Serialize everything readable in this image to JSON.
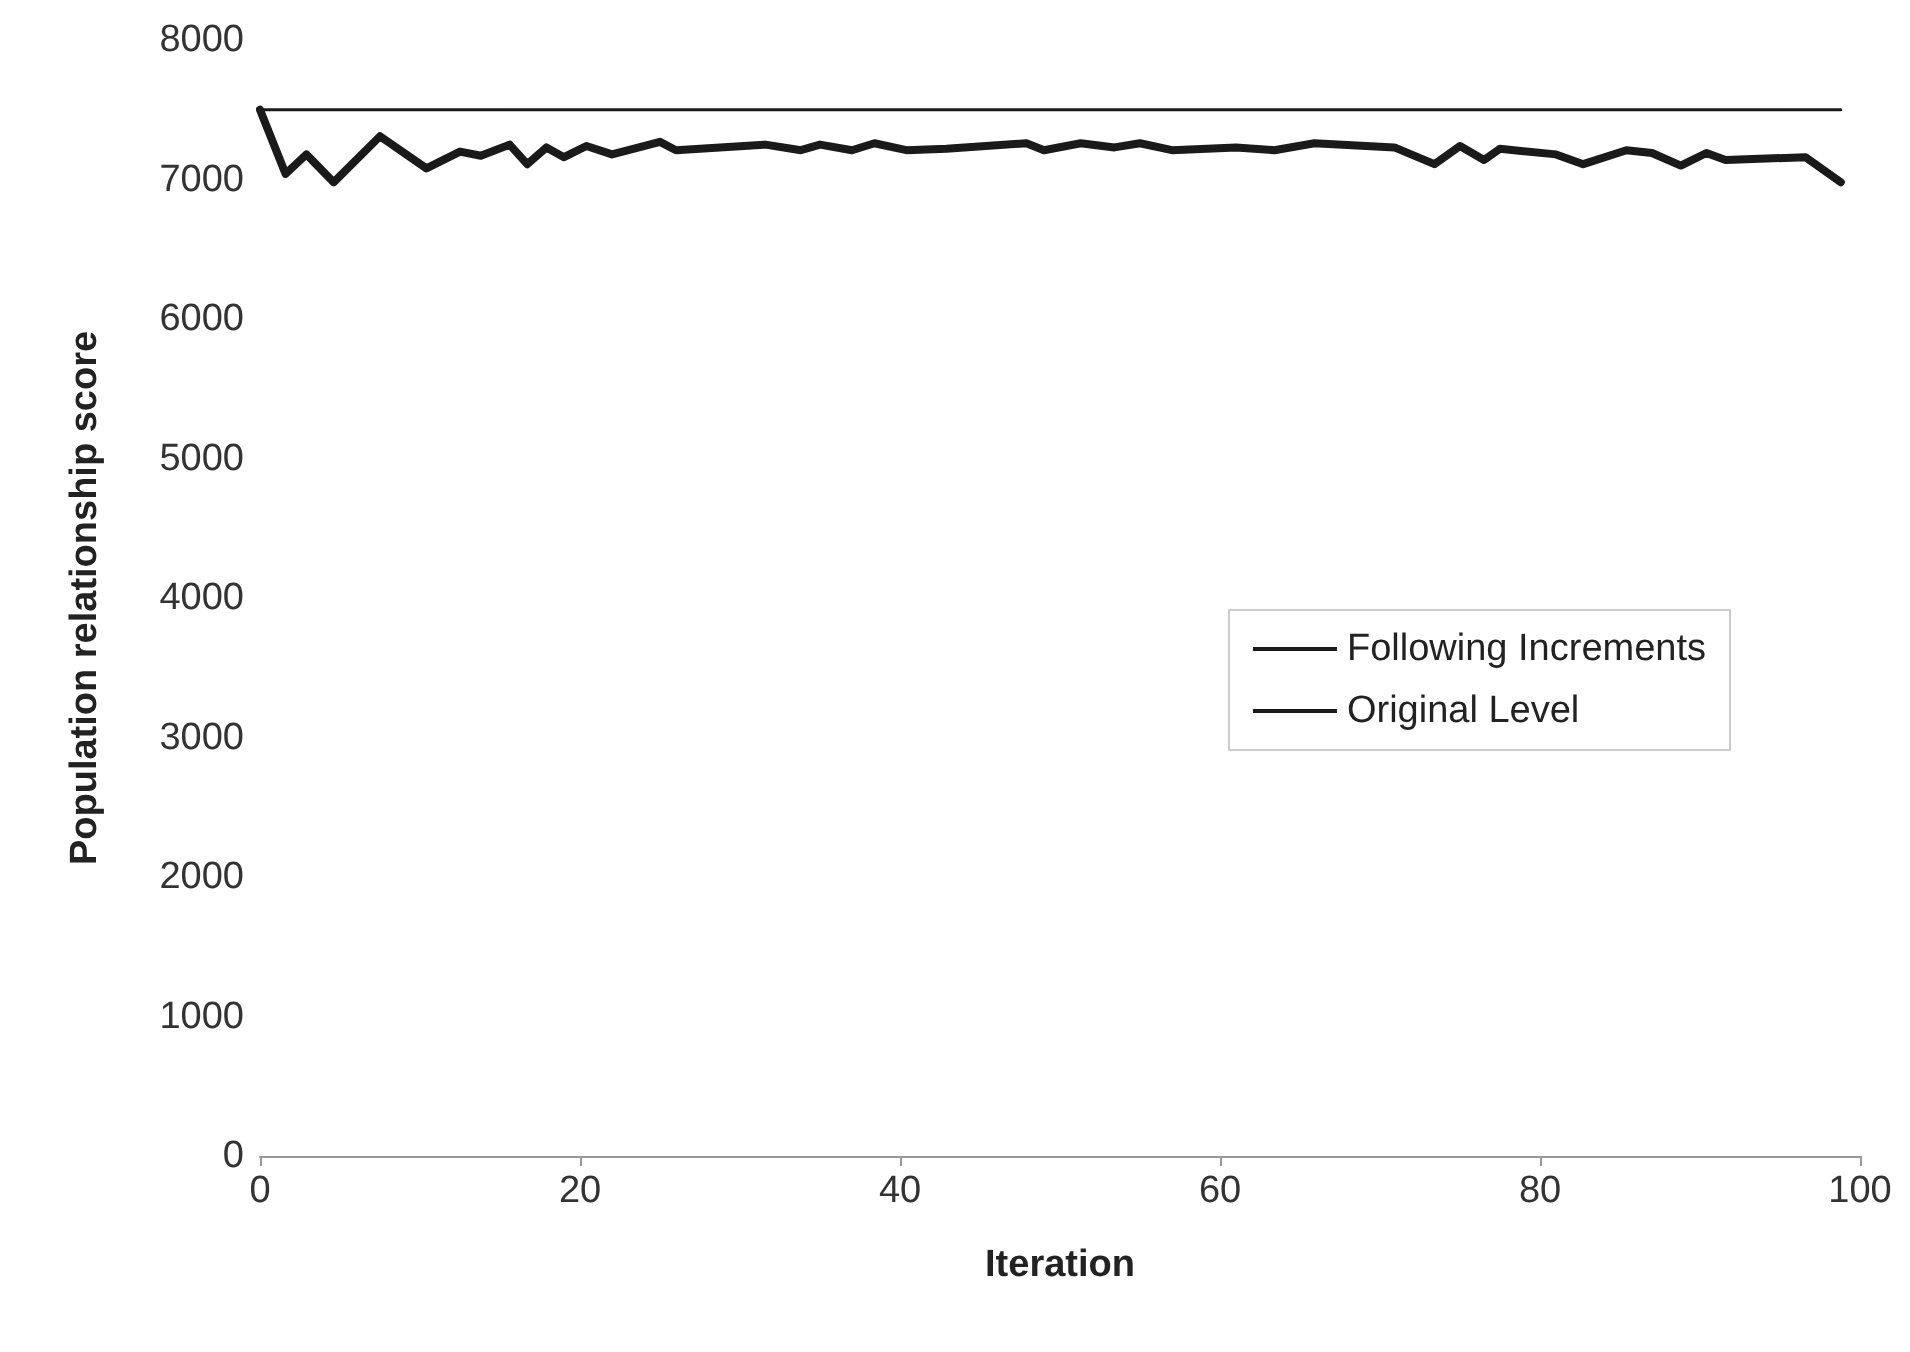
{
  "chart_data": {
    "type": "line",
    "xlabel": "Iteration",
    "ylabel": "Population relationship score",
    "xlim": [
      0,
      100
    ],
    "xticks": [
      0,
      20,
      40,
      60,
      80,
      100
    ],
    "ylim": [
      0,
      8000
    ],
    "yticks": [
      0,
      1000,
      2000,
      3000,
      4000,
      5000,
      6000,
      7000,
      8000
    ],
    "grid": false,
    "legend": "right",
    "marker": "none",
    "line_style": "solid",
    "series": [
      {
        "name": "Following Increments",
        "color": "#1a1a1a",
        "x": [
          0,
          1.6,
          2.9,
          4.6,
          7.5,
          10.4,
          12.5,
          13.8,
          15.6,
          16.7,
          17.9,
          19,
          20.4,
          22,
          25,
          26,
          27.5,
          31.6,
          33.8,
          35,
          37,
          38.4,
          40.4,
          42.9,
          47.9,
          49,
          51.3,
          53.4,
          55,
          57,
          61,
          63.4,
          65.9,
          70.9,
          73.4,
          75,
          76.5,
          77.5,
          81,
          82.7,
          85.4,
          87,
          88.8,
          90.4,
          91.6,
          96.6,
          98.8
        ],
        "values": [
          7500,
          7040,
          7180,
          6980,
          7310,
          7080,
          7200,
          7170,
          7250,
          7110,
          7230,
          7160,
          7240,
          7180,
          7270,
          7210,
          7220,
          7250,
          7210,
          7250,
          7210,
          7260,
          7210,
          7220,
          7260,
          7210,
          7260,
          7230,
          7260,
          7210,
          7230,
          7210,
          7260,
          7230,
          7110,
          7240,
          7140,
          7220,
          7180,
          7110,
          7210,
          7190,
          7100,
          7190,
          7140,
          7160,
          6980
        ]
      },
      {
        "name": "Original Level",
        "color": "#1a1a1a",
        "x": [
          0,
          98.8
        ],
        "values": [
          7500,
          7500
        ]
      }
    ]
  }
}
